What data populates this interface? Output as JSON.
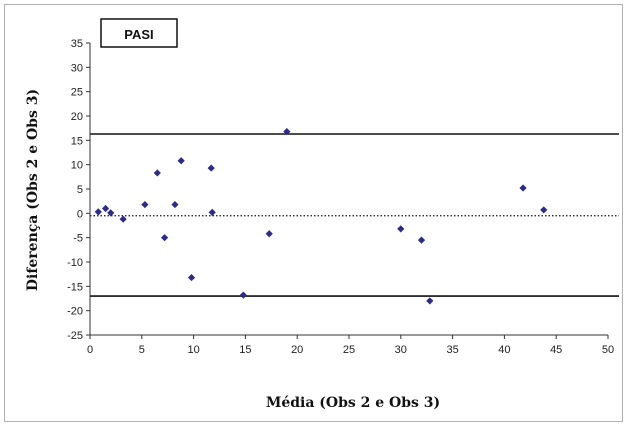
{
  "chart_data": {
    "type": "scatter",
    "panel_label": "PASI",
    "xlabel": "Média (Obs 2 e Obs 3)",
    "ylabel": "Diferença (Obs 2 e Obs 3)",
    "xlim": [
      0,
      50
    ],
    "ylim": [
      -25,
      35
    ],
    "xticks": [
      0,
      5,
      10,
      15,
      20,
      25,
      30,
      35,
      40,
      45,
      50
    ],
    "yticks": [
      35,
      30,
      25,
      20,
      15,
      10,
      5,
      0,
      -5,
      -10,
      -15,
      -20,
      -25
    ],
    "grid": false,
    "marker_color": "#2b2b8c",
    "points": [
      {
        "x": 0.8,
        "y": 0.3
      },
      {
        "x": 1.5,
        "y": 1.0
      },
      {
        "x": 2.0,
        "y": 0.1
      },
      {
        "x": 3.2,
        "y": -1.2
      },
      {
        "x": 5.3,
        "y": 1.8
      },
      {
        "x": 6.5,
        "y": 8.3
      },
      {
        "x": 7.2,
        "y": -5.0
      },
      {
        "x": 8.2,
        "y": 1.8
      },
      {
        "x": 8.8,
        "y": 10.8
      },
      {
        "x": 9.8,
        "y": -13.2
      },
      {
        "x": 11.7,
        "y": 9.3
      },
      {
        "x": 11.8,
        "y": 0.2
      },
      {
        "x": 14.8,
        "y": -16.8
      },
      {
        "x": 17.3,
        "y": -4.2
      },
      {
        "x": 19.0,
        "y": 16.8
      },
      {
        "x": 30.0,
        "y": -3.2
      },
      {
        "x": 32.0,
        "y": -5.5
      },
      {
        "x": 32.8,
        "y": -18.0
      },
      {
        "x": 41.8,
        "y": 5.2
      },
      {
        "x": 43.8,
        "y": 0.7
      }
    ],
    "reference_lines": [
      {
        "y": 16.3,
        "style": "solid"
      },
      {
        "y": -0.5,
        "style": "dotted"
      },
      {
        "y": -17.0,
        "style": "solid"
      }
    ]
  }
}
